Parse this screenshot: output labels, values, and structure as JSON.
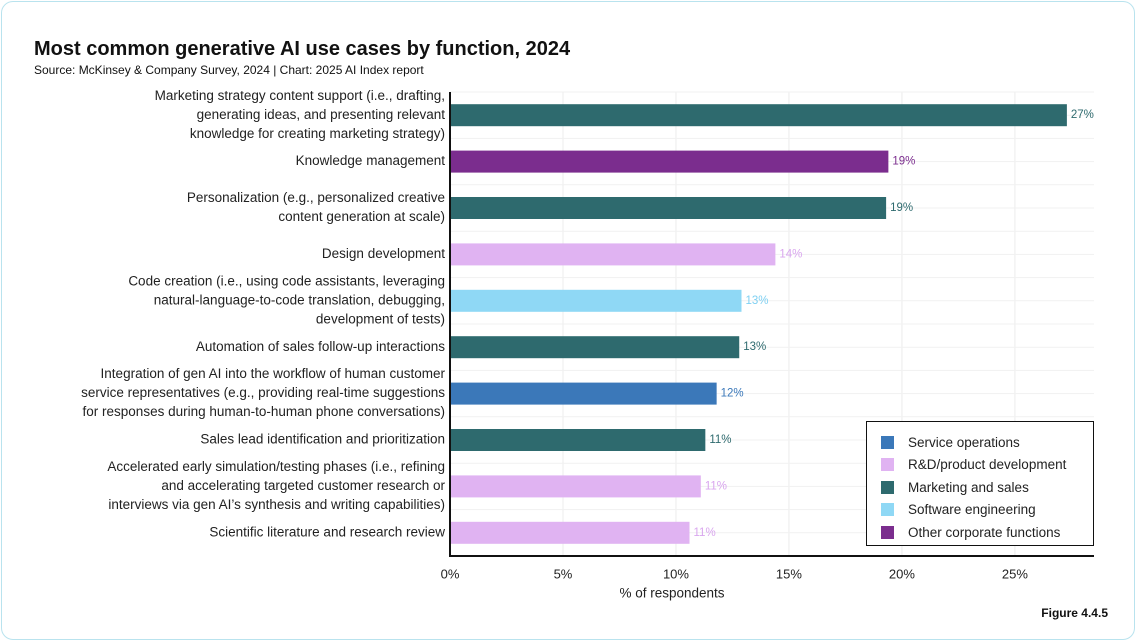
{
  "header": {
    "title": "Most common generative AI use cases by function, 2024",
    "subtitle": "Source: McKinsey & Company Survey, 2024 | Chart: 2025 AI Index report"
  },
  "footer": {
    "figure_label": "Figure 4.4.5"
  },
  "chart_data": {
    "type": "bar",
    "orientation": "horizontal",
    "title": "Most common generative AI use cases by function, 2024",
    "xlabel": "% of respondents",
    "ylabel": "",
    "xlim": [
      0,
      28.5
    ],
    "x_ticks": [
      0,
      5,
      10,
      15,
      20,
      25
    ],
    "x_tick_labels": [
      "0%",
      "5%",
      "10%",
      "15%",
      "20%",
      "25%"
    ],
    "grid": true,
    "legend_position": "bottom-right",
    "legend": [
      {
        "name": "Service operations",
        "color": "#3b78b9"
      },
      {
        "name": "R&D/product development",
        "color": "#e0b3f2"
      },
      {
        "name": "Marketing and sales",
        "color": "#2e6a6e"
      },
      {
        "name": "Software engineering",
        "color": "#8fd8f5"
      },
      {
        "name": "Other corporate functions",
        "color": "#7b2d8e"
      }
    ],
    "bars": [
      {
        "label": [
          "Marketing strategy content support (i.e., drafting,",
          "generating ideas, and presenting relevant",
          "knowledge for creating marketing strategy)"
        ],
        "value": 27.3,
        "value_label": "27%",
        "function": "Marketing and sales",
        "color": "#2e6a6e",
        "label_color": "#2e6a6e"
      },
      {
        "label": [
          "Knowledge management"
        ],
        "value": 19.4,
        "value_label": "19%",
        "function": "Other corporate functions",
        "color": "#7b2d8e",
        "label_color": "#7b2d8e"
      },
      {
        "label": [
          "Personalization (e.g., personalized creative",
          "content generation at scale)"
        ],
        "value": 19.3,
        "value_label": "19%",
        "function": "Marketing and sales",
        "color": "#2e6a6e",
        "label_color": "#2e6a6e"
      },
      {
        "label": [
          "Design development"
        ],
        "value": 14.4,
        "value_label": "14%",
        "function": "R&D/product development",
        "color": "#e0b3f2",
        "label_color": "#d9a6ee"
      },
      {
        "label": [
          "Code creation (i.e., using code assistants, leveraging",
          "natural-language-to-code translation, debugging,",
          "development of tests)"
        ],
        "value": 12.9,
        "value_label": "13%",
        "function": "Software engineering",
        "color": "#8fd8f5",
        "label_color": "#7fd0f2"
      },
      {
        "label": [
          "Automation of sales follow-up interactions"
        ],
        "value": 12.8,
        "value_label": "13%",
        "function": "Marketing and sales",
        "color": "#2e6a6e",
        "label_color": "#2e6a6e"
      },
      {
        "label": [
          "Integration of gen AI into the workflow of human customer",
          "service representatives (e.g., providing real-time suggestions",
          "for responses during human-to-human phone conversations)"
        ],
        "value": 11.8,
        "value_label": "12%",
        "function": "Service operations",
        "color": "#3b78b9",
        "label_color": "#3b78b9"
      },
      {
        "label": [
          "Sales lead identification and prioritization"
        ],
        "value": 11.3,
        "value_label": "11%",
        "function": "Marketing and sales",
        "color": "#2e6a6e",
        "label_color": "#2e6a6e"
      },
      {
        "label": [
          "Accelerated early simulation/testing phases (i.e., refining",
          "and accelerating targeted customer research or",
          "interviews via gen AI’s synthesis and writing capabilities)"
        ],
        "value": 11.1,
        "value_label": "11%",
        "function": "R&D/product development",
        "color": "#e0b3f2",
        "label_color": "#d9a6ee"
      },
      {
        "label": [
          "Scientific literature and research review"
        ],
        "value": 10.6,
        "value_label": "11%",
        "function": "R&D/product development",
        "color": "#e0b3f2",
        "label_color": "#d9a6ee"
      }
    ]
  }
}
